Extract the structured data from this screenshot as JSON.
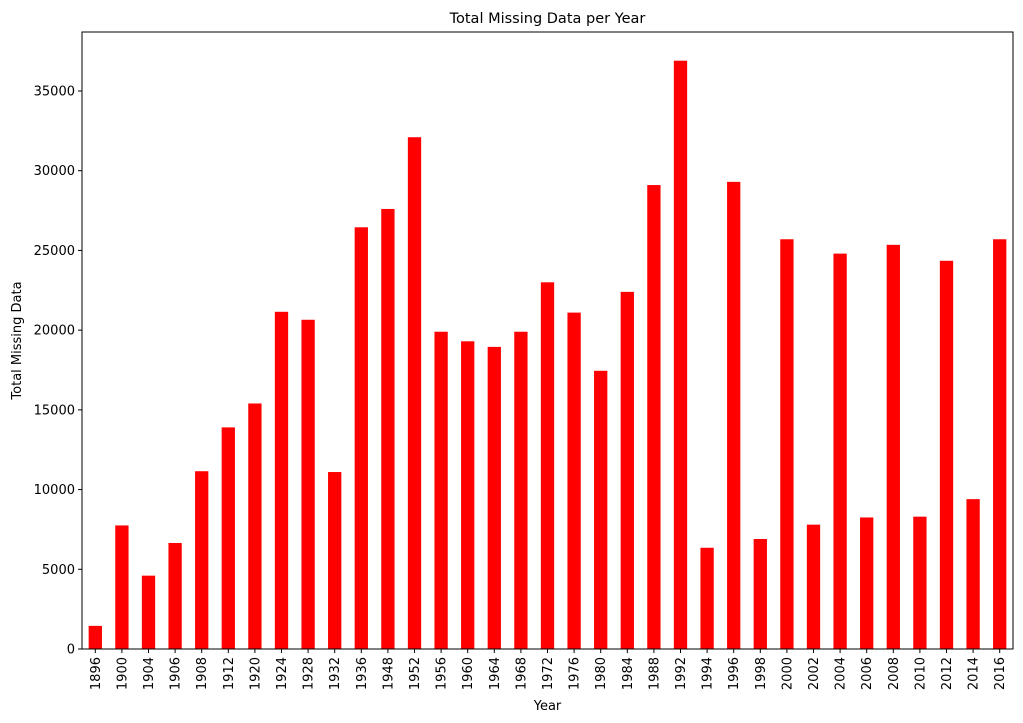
{
  "chart_data": {
    "type": "bar",
    "title": "Total Missing Data per Year",
    "xlabel": "Year",
    "ylabel": "Total Missing Data",
    "ylim": [
      0,
      38700
    ],
    "yticks": [
      0,
      5000,
      10000,
      15000,
      20000,
      25000,
      30000,
      35000
    ],
    "ytick_labels": [
      "0",
      "5000",
      "10000",
      "15000",
      "20000",
      "25000",
      "30000",
      "35000"
    ],
    "categories": [
      "1896",
      "1900",
      "1904",
      "1906",
      "1908",
      "1912",
      "1920",
      "1924",
      "1928",
      "1932",
      "1936",
      "1948",
      "1952",
      "1956",
      "1960",
      "1964",
      "1968",
      "1972",
      "1976",
      "1980",
      "1984",
      "1988",
      "1992",
      "1994",
      "1996",
      "1998",
      "2000",
      "2002",
      "2004",
      "2006",
      "2008",
      "2010",
      "2012",
      "2014",
      "2016"
    ],
    "values": [
      1450,
      7750,
      4600,
      6650,
      11150,
      13900,
      15400,
      21150,
      20650,
      11100,
      26450,
      27600,
      32100,
      19900,
      19300,
      18950,
      19900,
      23000,
      21100,
      17450,
      22400,
      29100,
      36900,
      6350,
      29300,
      6900,
      25700,
      7800,
      24800,
      8250,
      25350,
      8300,
      24350,
      9400,
      25700
    ],
    "color": "#ff0000",
    "grid": false,
    "legend": "none"
  }
}
